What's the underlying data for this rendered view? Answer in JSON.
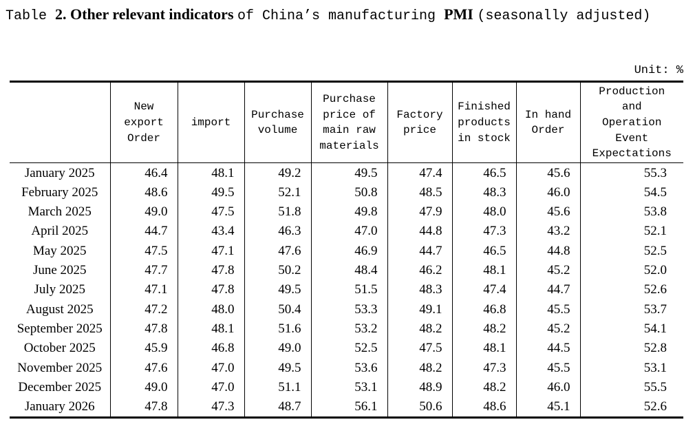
{
  "page": {
    "title": {
      "prefix": "Table ",
      "bold_main": "2. Other relevant indicators ",
      "mid": "of China’s manufacturing ",
      "bold_pmi": "PMI ",
      "suffix": "(seasonally adjusted)"
    },
    "unit_label": "Unit: %"
  },
  "table": {
    "columns": [
      {
        "label": ""
      },
      {
        "label": "New\nexport\nOrder"
      },
      {
        "label": "import"
      },
      {
        "label": "Purchase\nvolume"
      },
      {
        "label": "Purchase\nprice of\nmain raw\nmaterials"
      },
      {
        "label": "Factory\nprice"
      },
      {
        "label": "Finished\nproducts\nin stock"
      },
      {
        "label": "In hand\nOrder"
      },
      {
        "label": "Production\nand\nOperation\nEvent\nExpectations"
      }
    ],
    "rows": [
      {
        "label": "January 2025",
        "values": [
          "46.4",
          "48.1",
          "49.2",
          "49.5",
          "47.4",
          "46.5",
          "45.6",
          "55.3"
        ]
      },
      {
        "label": "February 2025",
        "values": [
          "48.6",
          "49.5",
          "52.1",
          "50.8",
          "48.5",
          "48.3",
          "46.0",
          "54.5"
        ]
      },
      {
        "label": "March 2025",
        "values": [
          "49.0",
          "47.5",
          "51.8",
          "49.8",
          "47.9",
          "48.0",
          "45.6",
          "53.8"
        ]
      },
      {
        "label": "April 2025",
        "values": [
          "44.7",
          "43.4",
          "46.3",
          "47.0",
          "44.8",
          "47.3",
          "43.2",
          "52.1"
        ]
      },
      {
        "label": "May 2025",
        "values": [
          "47.5",
          "47.1",
          "47.6",
          "46.9",
          "44.7",
          "46.5",
          "44.8",
          "52.5"
        ]
      },
      {
        "label": "June 2025",
        "values": [
          "47.7",
          "47.8",
          "50.2",
          "48.4",
          "46.2",
          "48.1",
          "45.2",
          "52.0"
        ]
      },
      {
        "label": "July 2025",
        "values": [
          "47.1",
          "47.8",
          "49.5",
          "51.5",
          "48.3",
          "47.4",
          "44.7",
          "52.6"
        ]
      },
      {
        "label": "August 2025",
        "values": [
          "47.2",
          "48.0",
          "50.4",
          "53.3",
          "49.1",
          "46.8",
          "45.5",
          "53.7"
        ]
      },
      {
        "label": "September 2025",
        "values": [
          "47.8",
          "48.1",
          "51.6",
          "53.2",
          "48.2",
          "48.2",
          "45.2",
          "54.1"
        ]
      },
      {
        "label": "October 2025",
        "values": [
          "45.9",
          "46.8",
          "49.0",
          "52.5",
          "47.5",
          "48.1",
          "44.5",
          "52.8"
        ]
      },
      {
        "label": "November 2025",
        "values": [
          "47.6",
          "47.0",
          "49.5",
          "53.6",
          "48.2",
          "47.3",
          "45.5",
          "53.1"
        ]
      },
      {
        "label": "December 2025",
        "values": [
          "49.0",
          "47.0",
          "51.1",
          "53.1",
          "48.9",
          "48.2",
          "46.0",
          "55.5"
        ]
      },
      {
        "label": "January 2026",
        "values": [
          "47.8",
          "47.3",
          "48.7",
          "56.1",
          "50.6",
          "48.6",
          "45.1",
          "52.6"
        ]
      }
    ]
  }
}
